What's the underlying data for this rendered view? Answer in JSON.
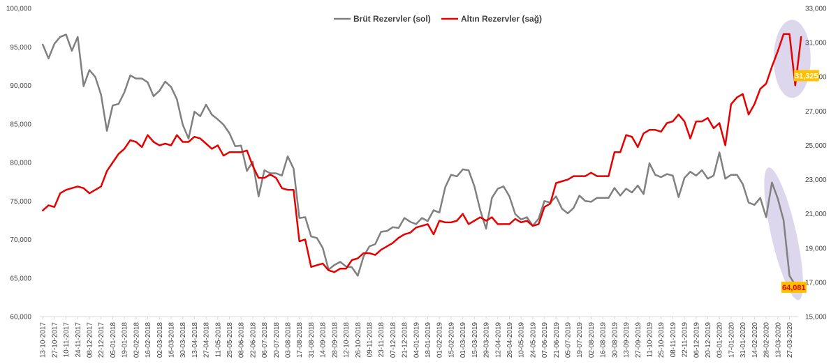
{
  "chart_data": {
    "type": "line",
    "title": "",
    "xlabel": "",
    "ylabel_left": "",
    "ylabel_right": "",
    "legend_position": "top-center",
    "grid": false,
    "y_left_range": [
      60000,
      100000
    ],
    "y_left_ticks": [
      "60,000",
      "65,000",
      "70,000",
      "75,000",
      "80,000",
      "85,000",
      "90,000",
      "95,000",
      "100,000"
    ],
    "y_right_range": [
      15000,
      33000
    ],
    "y_right_ticks": [
      "15,000",
      "17,000",
      "19,000",
      "21,000",
      "23,000",
      "25,000",
      "27,000",
      "29,000",
      "31,000",
      "33,000"
    ],
    "x_tick_labels": [
      "13-10-2017",
      "27-10-2017",
      "10-11-2017",
      "24-11-2017",
      "08-12-2017",
      "22-12-2017",
      "05-01-2018",
      "19-01-2018",
      "02-02-2018",
      "16-02-2018",
      "02-03-2018",
      "16-03-2018",
      "30-03-2018",
      "13-04-2018",
      "27-04-2018",
      "11-05-2018",
      "25-05-2018",
      "08-06-2018",
      "22-06-2018",
      "06-07-2018",
      "20-07-2018",
      "03-08-2018",
      "17-08-2018",
      "31-08-2018",
      "14-09-2018",
      "28-09-2018",
      "12-10-2018",
      "26-10-2018",
      "09-11-2018",
      "23-11-2018",
      "07-12-2018",
      "21-12-2018",
      "04-01-2019",
      "18-01-2019",
      "01-02-2019",
      "15-02-2019",
      "01-03-2019",
      "15-03-2019",
      "29-03-2019",
      "12-04-2019",
      "26-04-2019",
      "10-05-2019",
      "24-05-2019",
      "07-06-2019",
      "21-06-2019",
      "05-07-2019",
      "19-07-2019",
      "02-08-2019",
      "16-08-2019",
      "30-08-2019",
      "13-09-2019",
      "27-09-2019",
      "11-10-2019",
      "25-10-2019",
      "08-11-2019",
      "22-11-2019",
      "06-12-2019",
      "20-12-2019",
      "03-01-2020",
      "17-01-2020",
      "31-01-2020",
      "14-02-2020",
      "28-02-2020",
      "13-03-2020",
      "27-03-2020"
    ],
    "series": [
      {
        "name": "Brüt Rezervler (sol)",
        "axis": "left",
        "color": "#808080",
        "values": [
          95300,
          93500,
          95400,
          96300,
          96600,
          94500,
          96300,
          89900,
          92000,
          91100,
          88800,
          84100,
          87400,
          87600,
          89100,
          91300,
          90900,
          90900,
          90400,
          88600,
          89300,
          90500,
          89800,
          88200,
          84900,
          83100,
          86600,
          86000,
          87500,
          86200,
          85600,
          84900,
          83800,
          82100,
          82200,
          78900,
          80100,
          75600,
          79000,
          78600,
          78600,
          78300,
          80800,
          79200,
          72800,
          72900,
          70400,
          70200,
          68900,
          66100,
          66700,
          67100,
          66500,
          66400,
          65300,
          67800,
          69100,
          69400,
          71000,
          71100,
          71600,
          71500,
          72800,
          72300,
          72000,
          72800,
          72400,
          73800,
          73500,
          76800,
          78400,
          78200,
          79100,
          79000,
          76900,
          73800,
          71400,
          75400,
          76600,
          76900,
          75600,
          73300,
          72600,
          72900,
          71800,
          72700,
          75000,
          74800,
          75600,
          74000,
          73400,
          74100,
          75700,
          75000,
          74900,
          75400,
          75400,
          75400,
          76700,
          75700,
          76600,
          76100,
          77000,
          75900,
          79900,
          78400,
          78100,
          78500,
          78300,
          75500,
          78000,
          78800,
          78300,
          79000,
          77900,
          78300,
          81300,
          77900,
          78400,
          78400,
          77200,
          74800,
          74500,
          75400,
          72900,
          77400,
          75300,
          72500,
          65300,
          64081
        ],
        "last_value_label": "64,081"
      },
      {
        "name": "Altın Rezervler (sağ)",
        "axis": "right",
        "color": "#e60000",
        "values": [
          21200,
          21500,
          21400,
          22200,
          22400,
          22500,
          22600,
          22500,
          22200,
          22400,
          22600,
          23500,
          24000,
          24500,
          24800,
          25300,
          25200,
          24900,
          25600,
          25200,
          25000,
          25100,
          25000,
          25600,
          25200,
          25200,
          25500,
          25400,
          25100,
          24800,
          25000,
          24400,
          24600,
          24600,
          24600,
          24700,
          23800,
          23100,
          23100,
          23300,
          23100,
          22500,
          22400,
          22400,
          19400,
          19500,
          17900,
          18000,
          18100,
          17700,
          17600,
          17800,
          17800,
          18300,
          18400,
          18700,
          18700,
          18600,
          18900,
          19100,
          19300,
          19600,
          19800,
          19900,
          20200,
          20300,
          20400,
          19800,
          20600,
          20500,
          20500,
          20600,
          21000,
          20400,
          20600,
          20800,
          20600,
          20800,
          20400,
          20400,
          20400,
          20700,
          20500,
          20600,
          20300,
          20400,
          21400,
          21600,
          22800,
          22900,
          23000,
          23200,
          23200,
          23200,
          23400,
          23200,
          23200,
          23200,
          24600,
          24600,
          25600,
          25500,
          24900,
          25700,
          25900,
          25900,
          25800,
          26300,
          26400,
          26800,
          26400,
          25400,
          26400,
          26400,
          26600,
          26000,
          26300,
          25000,
          27400,
          27800,
          28000,
          26800,
          27400,
          28300,
          28600,
          29600,
          30500,
          31500,
          31500,
          28500,
          31325
        ],
        "last_value_label": "31,325"
      }
    ],
    "highlights": [
      {
        "series": "Altın Rezervler (sağ)",
        "note": "last value badge",
        "badge_color": "#ffc000"
      },
      {
        "series": "Brüt Rezervler (sol)",
        "note": "last value badge",
        "badge_color": "#ffc000"
      }
    ]
  }
}
